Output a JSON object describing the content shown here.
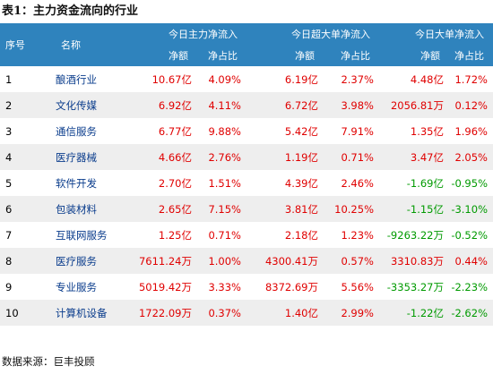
{
  "caption": "表1：主力资金流向的行业",
  "table": {
    "col_index": "序号",
    "col_name": "名称",
    "groups": [
      "今日主力净流入",
      "今日超大单净流入",
      "今日大单净流入"
    ],
    "sub_amount": "净额",
    "sub_ratio": "净占比",
    "rows": [
      {
        "idx": "1",
        "name": "酿酒行业",
        "v": [
          "10.67亿",
          "4.09%",
          "6.19亿",
          "2.37%",
          "4.48亿",
          "1.72%"
        ]
      },
      {
        "idx": "2",
        "name": "文化传媒",
        "v": [
          "6.92亿",
          "4.11%",
          "6.72亿",
          "3.98%",
          "2056.81万",
          "0.12%"
        ]
      },
      {
        "idx": "3",
        "name": "通信服务",
        "v": [
          "6.77亿",
          "9.88%",
          "5.42亿",
          "7.91%",
          "1.35亿",
          "1.96%"
        ]
      },
      {
        "idx": "4",
        "name": "医疗器械",
        "v": [
          "4.66亿",
          "2.76%",
          "1.19亿",
          "0.71%",
          "3.47亿",
          "2.05%"
        ]
      },
      {
        "idx": "5",
        "name": "软件开发",
        "v": [
          "2.70亿",
          "1.51%",
          "4.39亿",
          "2.46%",
          "-1.69亿",
          "-0.95%"
        ]
      },
      {
        "idx": "6",
        "name": "包装材料",
        "v": [
          "2.65亿",
          "7.15%",
          "3.81亿",
          "10.25%",
          "-1.15亿",
          "-3.10%"
        ]
      },
      {
        "idx": "7",
        "name": "互联网服务",
        "v": [
          "1.25亿",
          "0.71%",
          "2.18亿",
          "1.23%",
          "-9263.22万",
          "-0.52%"
        ]
      },
      {
        "idx": "8",
        "name": "医疗服务",
        "v": [
          "7611.24万",
          "1.00%",
          "4300.41万",
          "0.57%",
          "3310.83万",
          "0.44%"
        ]
      },
      {
        "idx": "9",
        "name": "专业服务",
        "v": [
          "5019.42万",
          "3.33%",
          "8372.69万",
          "5.56%",
          "-3353.27万",
          "-2.23%"
        ]
      },
      {
        "idx": "10",
        "name": "计算机设备",
        "v": [
          "1722.09万",
          "0.37%",
          "1.40亿",
          "2.99%",
          "-1.22亿",
          "-2.62%"
        ]
      }
    ]
  },
  "colors": {
    "header_bg": "#2f83bd",
    "positive": "#e00000",
    "negative": "#009a00",
    "stripe": "#eeeeee"
  },
  "source": "数据来源：巨丰投顾"
}
